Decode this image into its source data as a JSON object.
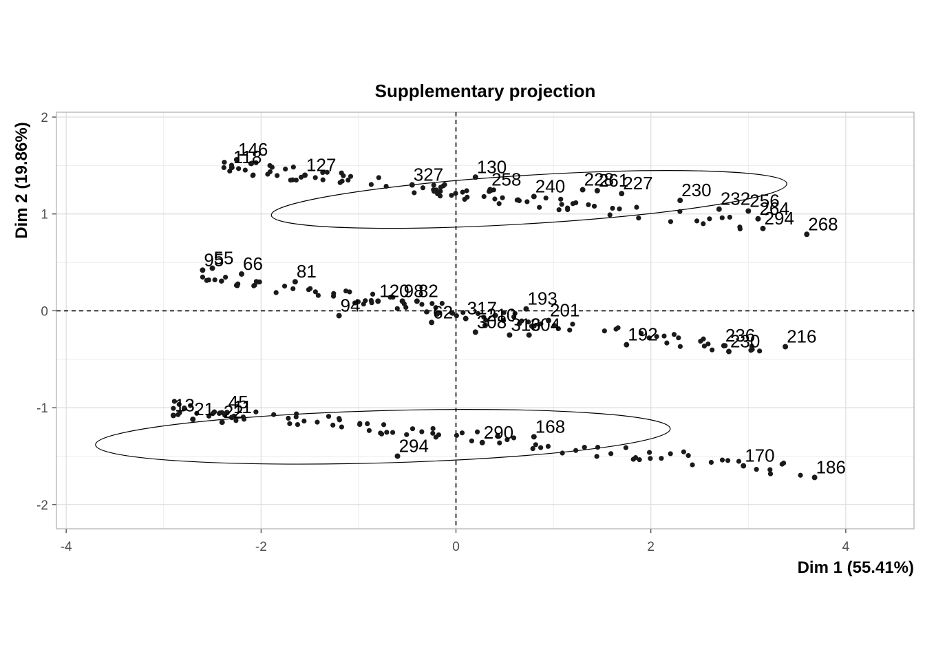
{
  "chart_data": {
    "type": "scatter",
    "title": "Supplementary projection",
    "xlabel": "Dim 1 (55.41%)",
    "ylabel": "Dim 2 (19.86%)",
    "xlim": [
      -4.1,
      4.7
    ],
    "ylim": [
      -2.25,
      2.05
    ],
    "xticks": [
      -4,
      -2,
      0,
      2,
      4
    ],
    "yticks": [
      -2,
      -1,
      0,
      1,
      2
    ],
    "xtick_labels": [
      "-4",
      "-2",
      "0",
      "2",
      "4"
    ],
    "ytick_labels": [
      "-2",
      "-1",
      "0",
      "1",
      "2"
    ],
    "grid": true,
    "reference_lines": {
      "x": 0,
      "y": 0,
      "style": "dashed"
    },
    "ellipses": [
      {
        "cx": 0.75,
        "cy": 1.15,
        "rx": 2.65,
        "ry": 0.25,
        "angle_deg": -3.5
      },
      {
        "cx": -0.75,
        "cy": -1.3,
        "rx": 2.95,
        "ry": 0.27,
        "angle_deg": -1.6
      }
    ],
    "labeled_points": [
      {
        "label": "146",
        "x": -2.25,
        "y": 1.56
      },
      {
        "label": "118",
        "x": -2.3,
        "y": 1.48
      },
      {
        "label": "127",
        "x": -1.55,
        "y": 1.4
      },
      {
        "label": "130",
        "x": 0.2,
        "y": 1.38
      },
      {
        "label": "258",
        "x": 0.35,
        "y": 1.25
      },
      {
        "label": "327",
        "x": -0.45,
        "y": 1.3
      },
      {
        "label": "240",
        "x": 0.8,
        "y": 1.18
      },
      {
        "label": "228",
        "x": 1.3,
        "y": 1.25
      },
      {
        "label": "261",
        "x": 1.45,
        "y": 1.24
      },
      {
        "label": "227",
        "x": 1.7,
        "y": 1.21
      },
      {
        "label": "230",
        "x": 2.3,
        "y": 1.14
      },
      {
        "label": "232",
        "x": 2.7,
        "y": 1.05
      },
      {
        "label": "256",
        "x": 3.0,
        "y": 1.03
      },
      {
        "label": "264",
        "x": 3.1,
        "y": 0.95
      },
      {
        "label": "294",
        "x": 3.15,
        "y": 0.85
      },
      {
        "label": "268",
        "x": 3.6,
        "y": 0.79
      },
      {
        "label": "95",
        "x": -2.6,
        "y": 0.42
      },
      {
        "label": "55",
        "x": -2.5,
        "y": 0.44
      },
      {
        "label": "66",
        "x": -2.2,
        "y": 0.38
      },
      {
        "label": "81",
        "x": -1.65,
        "y": 0.3
      },
      {
        "label": "120",
        "x": -0.8,
        "y": 0.1
      },
      {
        "label": "98",
        "x": -0.55,
        "y": 0.1
      },
      {
        "label": "82",
        "x": -0.4,
        "y": 0.1
      },
      {
        "label": "193",
        "x": 0.72,
        "y": 0.02
      },
      {
        "label": "94",
        "x": -1.2,
        "y": -0.05
      },
      {
        "label": "62",
        "x": -0.25,
        "y": -0.12
      },
      {
        "label": "317",
        "x": 0.1,
        "y": -0.08
      },
      {
        "label": "210",
        "x": 0.3,
        "y": -0.15
      },
      {
        "label": "308",
        "x": 0.2,
        "y": -0.22
      },
      {
        "label": "316",
        "x": 0.55,
        "y": -0.25
      },
      {
        "label": "304",
        "x": 0.75,
        "y": -0.25
      },
      {
        "label": "201",
        "x": 0.95,
        "y": -0.1
      },
      {
        "label": "192",
        "x": 1.75,
        "y": -0.35
      },
      {
        "label": "236",
        "x": 2.75,
        "y": -0.36
      },
      {
        "label": "230",
        "x": 2.8,
        "y": -0.42
      },
      {
        "label": "216",
        "x": 3.38,
        "y": -0.37
      },
      {
        "label": "13",
        "x": -2.9,
        "y": -1.08
      },
      {
        "label": "21",
        "x": -2.7,
        "y": -1.12
      },
      {
        "label": "45",
        "x": -2.35,
        "y": -1.05
      },
      {
        "label": "22",
        "x": -2.4,
        "y": -1.15
      },
      {
        "label": "11",
        "x": -2.3,
        "y": -1.1
      },
      {
        "label": "294",
        "x": -0.6,
        "y": -1.5
      },
      {
        "label": "290",
        "x": 0.27,
        "y": -1.36
      },
      {
        "label": "168",
        "x": 0.8,
        "y": -1.3
      },
      {
        "label": "170",
        "x": 2.95,
        "y": -1.6
      },
      {
        "label": "186",
        "x": 3.68,
        "y": -1.72
      }
    ]
  }
}
